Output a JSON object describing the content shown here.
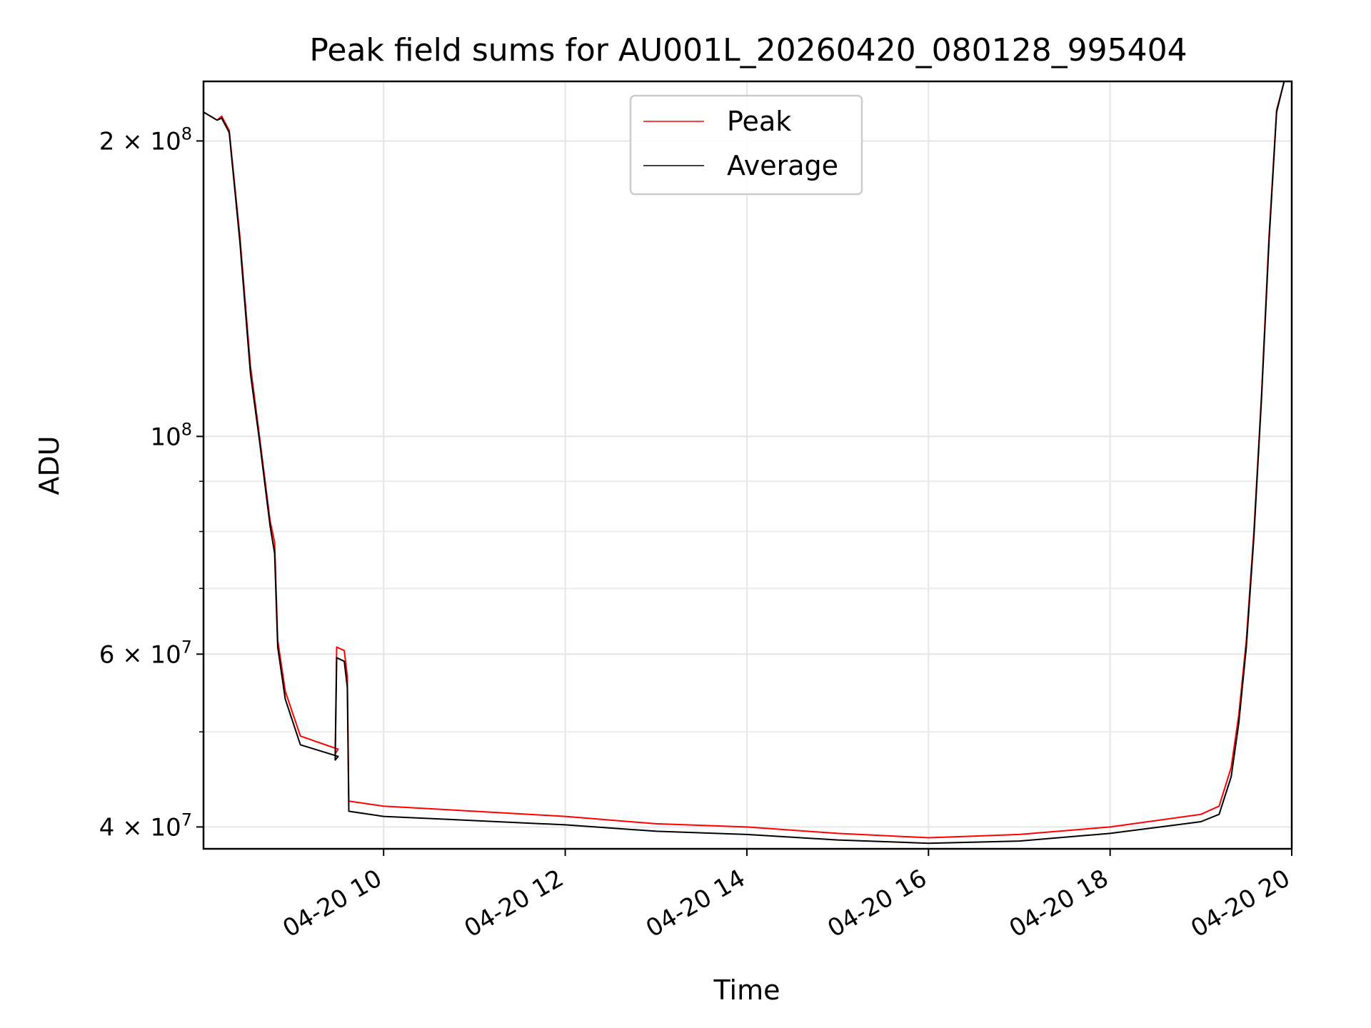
{
  "chart_data": {
    "type": "line",
    "title": "Peak field sums for AU001L_20260420_080128_995404",
    "xlabel": "Time",
    "ylabel": "ADU",
    "y_scale": "log",
    "xlim": [
      "2026-04-20 08:01",
      "2026-04-20 20:00"
    ],
    "ylim": [
      38000000,
      230000000
    ],
    "x_ticks": [
      {
        "t": "2026-04-20 10:00",
        "label": "04-20 10"
      },
      {
        "t": "2026-04-20 12:00",
        "label": "04-20 12"
      },
      {
        "t": "2026-04-20 14:00",
        "label": "04-20 14"
      },
      {
        "t": "2026-04-20 16:00",
        "label": "04-20 16"
      },
      {
        "t": "2026-04-20 18:00",
        "label": "04-20 18"
      },
      {
        "t": "2026-04-20 20:00",
        "label": "04-20 20"
      }
    ],
    "y_ticks": [
      {
        "v": 40000000,
        "base": "4 × 10",
        "exp": "7"
      },
      {
        "v": 60000000,
        "base": "6 × 10",
        "exp": "7"
      },
      {
        "v": 100000000,
        "base": "10",
        "exp": "8"
      },
      {
        "v": 200000000,
        "base": "2 × 10",
        "exp": "8"
      }
    ],
    "y_minor_ticks": [
      50000000,
      70000000,
      80000000,
      90000000
    ],
    "grid": true,
    "legend_position": "upper-center",
    "series": [
      {
        "name": "Peak",
        "color": "#ff0000",
        "points": [
          [
            "2026-04-20 08:01",
            214000000
          ],
          [
            "2026-04-20 08:10",
            210000000
          ],
          [
            "2026-04-20 08:13",
            212000000
          ],
          [
            "2026-04-20 08:18",
            205000000
          ],
          [
            "2026-04-20 08:25",
            160000000
          ],
          [
            "2026-04-20 08:32",
            118000000
          ],
          [
            "2026-04-20 08:38",
            100000000
          ],
          [
            "2026-04-20 08:45",
            82000000
          ],
          [
            "2026-04-20 08:48",
            78000000
          ],
          [
            "2026-04-20 08:50",
            62000000
          ],
          [
            "2026-04-20 08:55",
            55000000
          ],
          [
            "2026-04-20 09:05",
            49500000
          ],
          [
            "2026-04-20 09:30",
            48000000
          ],
          [
            "2026-04-20 09:28",
            47500000
          ],
          [
            "2026-04-20 09:29",
            61000000
          ],
          [
            "2026-04-20 09:34",
            60500000
          ],
          [
            "2026-04-20 09:36",
            57000000
          ],
          [
            "2026-04-20 09:37",
            42500000
          ],
          [
            "2026-04-20 10:00",
            42000000
          ],
          [
            "2026-04-20 11:00",
            41500000
          ],
          [
            "2026-04-20 12:00",
            41000000
          ],
          [
            "2026-04-20 13:00",
            40300000
          ],
          [
            "2026-04-20 14:00",
            40000000
          ],
          [
            "2026-04-20 15:00",
            39400000
          ],
          [
            "2026-04-20 16:00",
            39000000
          ],
          [
            "2026-04-20 17:00",
            39300000
          ],
          [
            "2026-04-20 18:00",
            40000000
          ],
          [
            "2026-04-20 19:00",
            41200000
          ],
          [
            "2026-04-20 19:12",
            42000000
          ],
          [
            "2026-04-20 19:20",
            46000000
          ],
          [
            "2026-04-20 19:25",
            52000000
          ],
          [
            "2026-04-20 19:30",
            62000000
          ],
          [
            "2026-04-20 19:35",
            80000000
          ],
          [
            "2026-04-20 19:40",
            110000000
          ],
          [
            "2026-04-20 19:45",
            160000000
          ],
          [
            "2026-04-20 19:50",
            215000000
          ],
          [
            "2026-04-20 19:55",
            230000000
          ]
        ]
      },
      {
        "name": "Average",
        "color": "#000000",
        "points": [
          [
            "2026-04-20 08:01",
            214000000
          ],
          [
            "2026-04-20 08:10",
            210000000
          ],
          [
            "2026-04-20 08:13",
            211000000
          ],
          [
            "2026-04-20 08:18",
            204000000
          ],
          [
            "2026-04-20 08:25",
            158000000
          ],
          [
            "2026-04-20 08:32",
            116000000
          ],
          [
            "2026-04-20 08:38",
            99000000
          ],
          [
            "2026-04-20 08:45",
            81000000
          ],
          [
            "2026-04-20 08:48",
            76000000
          ],
          [
            "2026-04-20 08:50",
            61000000
          ],
          [
            "2026-04-20 08:55",
            54000000
          ],
          [
            "2026-04-20 09:05",
            48500000
          ],
          [
            "2026-04-20 09:30",
            47200000
          ],
          [
            "2026-04-20 09:28",
            46800000
          ],
          [
            "2026-04-20 09:29",
            59500000
          ],
          [
            "2026-04-20 09:34",
            59000000
          ],
          [
            "2026-04-20 09:36",
            55500000
          ],
          [
            "2026-04-20 09:37",
            41500000
          ],
          [
            "2026-04-20 10:00",
            41000000
          ],
          [
            "2026-04-20 11:00",
            40600000
          ],
          [
            "2026-04-20 12:00",
            40200000
          ],
          [
            "2026-04-20 13:00",
            39600000
          ],
          [
            "2026-04-20 14:00",
            39300000
          ],
          [
            "2026-04-20 15:00",
            38800000
          ],
          [
            "2026-04-20 16:00",
            38500000
          ],
          [
            "2026-04-20 17:00",
            38700000
          ],
          [
            "2026-04-20 18:00",
            39400000
          ],
          [
            "2026-04-20 19:00",
            40500000
          ],
          [
            "2026-04-20 19:12",
            41200000
          ],
          [
            "2026-04-20 19:20",
            45000000
          ],
          [
            "2026-04-20 19:25",
            51000000
          ],
          [
            "2026-04-20 19:30",
            61000000
          ],
          [
            "2026-04-20 19:35",
            79000000
          ],
          [
            "2026-04-20 19:40",
            109000000
          ],
          [
            "2026-04-20 19:45",
            158000000
          ],
          [
            "2026-04-20 19:50",
            214000000
          ],
          [
            "2026-04-20 19:55",
            230000000
          ]
        ]
      }
    ]
  }
}
